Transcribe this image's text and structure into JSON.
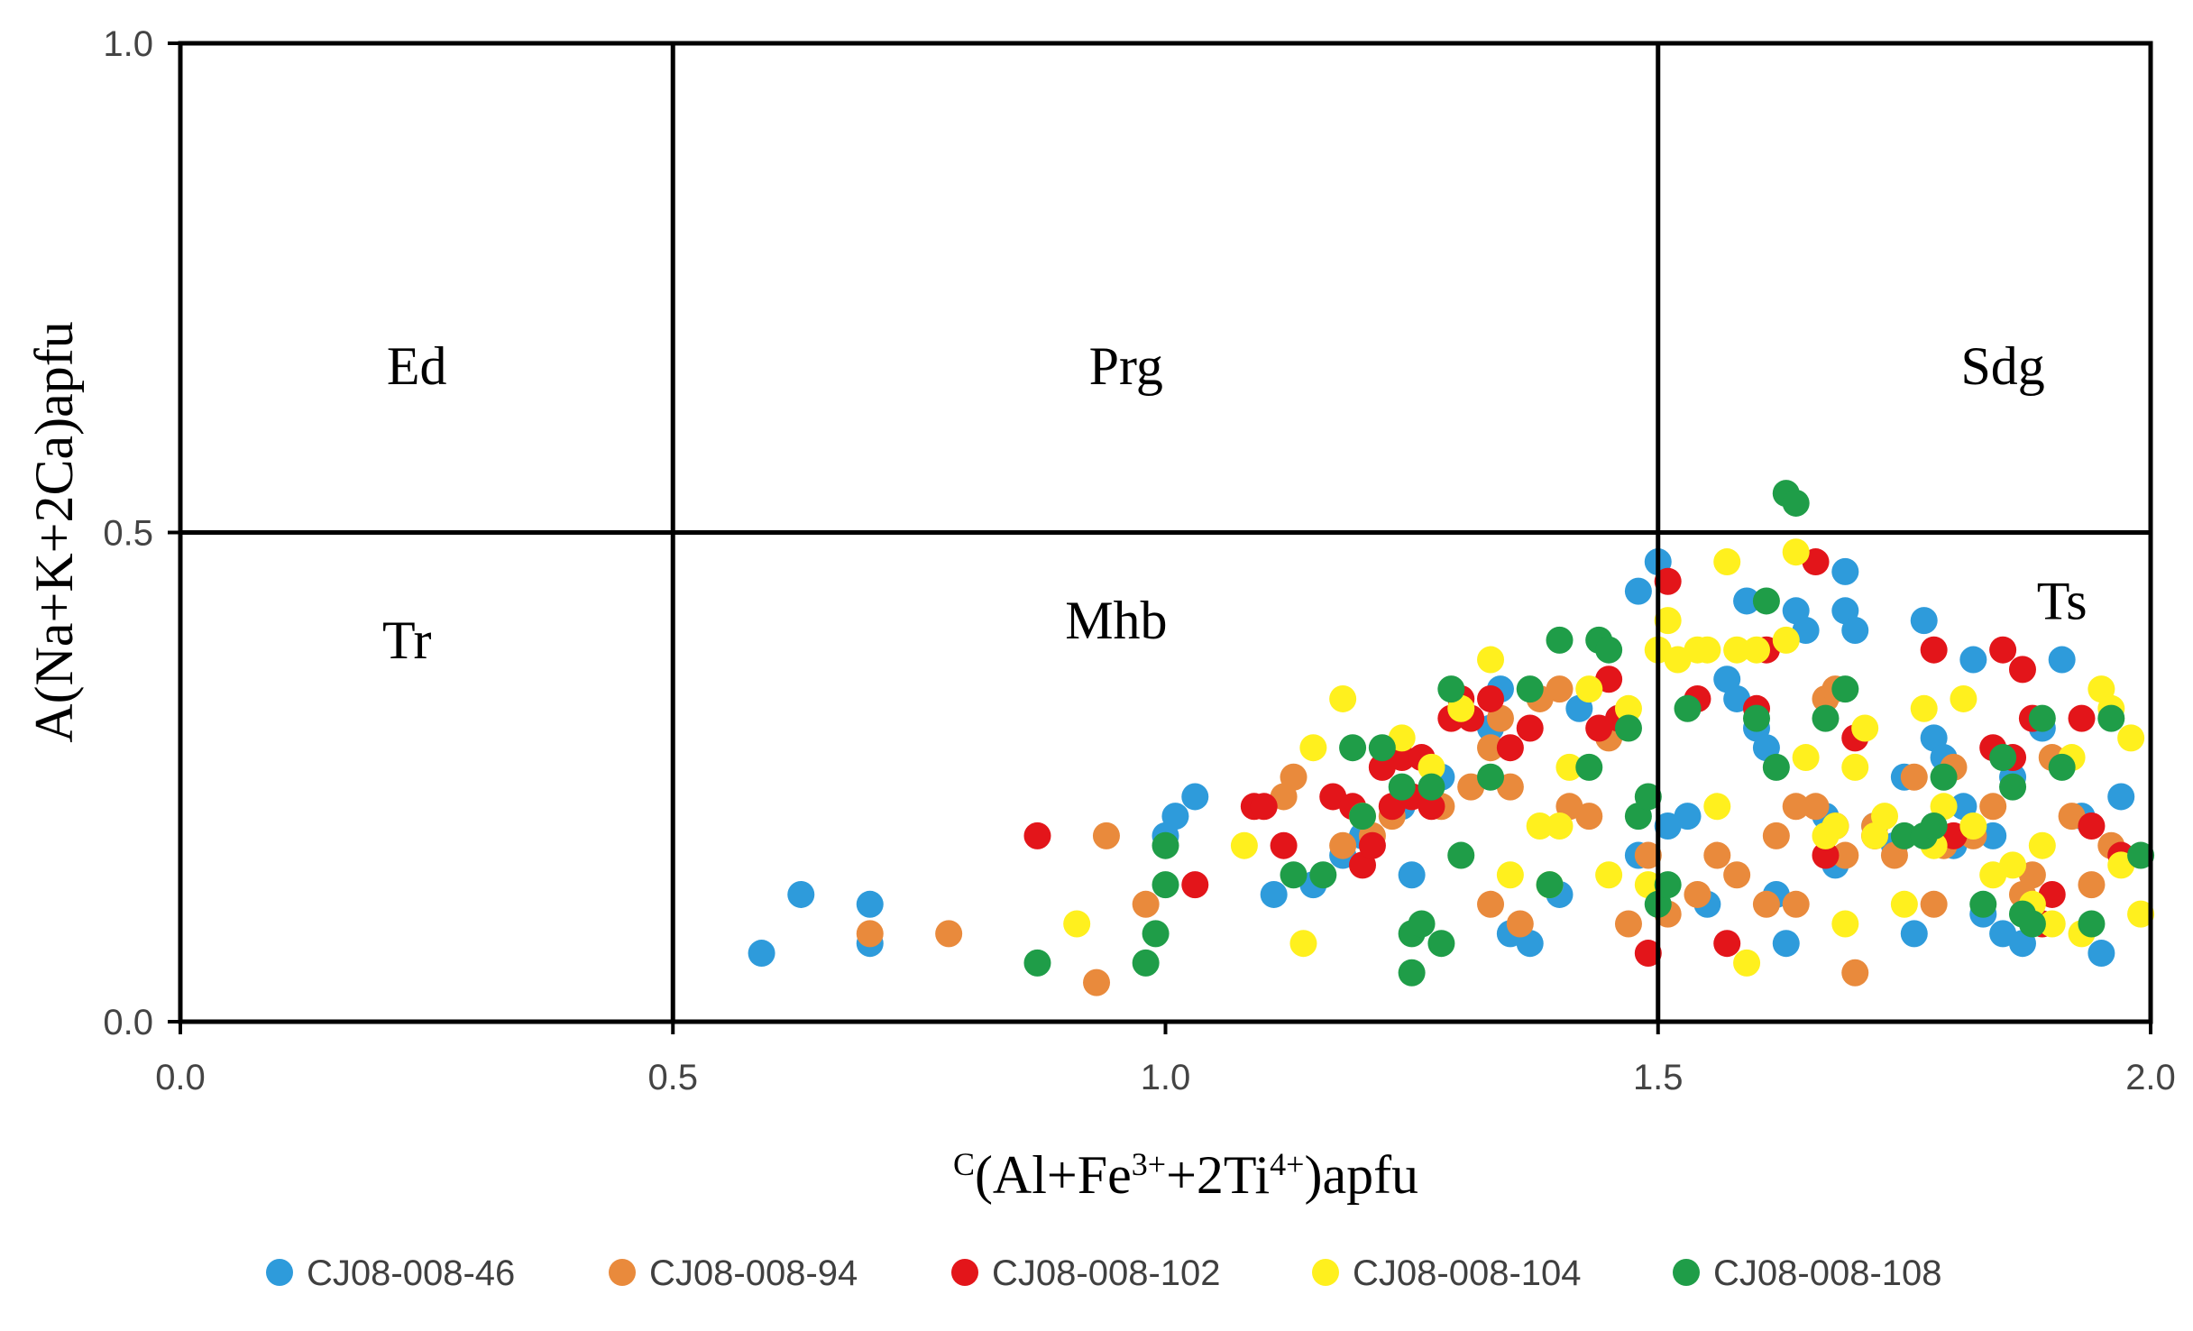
{
  "chart_data": {
    "type": "scatter",
    "title": "",
    "xlabel_sup": "C",
    "xlabel_parts": [
      "(Al+Fe",
      "3+",
      "+2Ti",
      "4+",
      ")apfu"
    ],
    "ylabel": "A(Na+K+2Ca)apfu",
    "xlim": [
      0.0,
      2.0
    ],
    "ylim": [
      0.0,
      1.0
    ],
    "x_ticks": [
      "0.0",
      "0.5",
      "1.0",
      "1.5",
      "2.0"
    ],
    "y_ticks": [
      "0.0",
      "0.5",
      "1.0"
    ],
    "field_lines": {
      "x": [
        0.5,
        1.5
      ],
      "y": [
        0.5
      ]
    },
    "field_labels": [
      {
        "text": "Ed",
        "x": 0.24,
        "y": 0.67
      },
      {
        "text": "Prg",
        "x": 0.96,
        "y": 0.67
      },
      {
        "text": "Sdg",
        "x": 1.85,
        "y": 0.67
      },
      {
        "text": "Tr",
        "x": 0.23,
        "y": 0.39
      },
      {
        "text": "Mhb",
        "x": 0.95,
        "y": 0.41
      },
      {
        "text": "Ts",
        "x": 1.91,
        "y": 0.43
      }
    ],
    "legend_position": "bottom",
    "series": [
      {
        "name": "CJ08-008-46",
        "color": "#2E9BDB",
        "points": [
          [
            0.59,
            0.07
          ],
          [
            0.63,
            0.13
          ],
          [
            0.7,
            0.12
          ],
          [
            0.7,
            0.08
          ],
          [
            1.0,
            0.19
          ],
          [
            1.01,
            0.21
          ],
          [
            1.03,
            0.23
          ],
          [
            1.11,
            0.13
          ],
          [
            1.15,
            0.14
          ],
          [
            1.18,
            0.17
          ],
          [
            1.2,
            0.19
          ],
          [
            1.24,
            0.22
          ],
          [
            1.25,
            0.15
          ],
          [
            1.28,
            0.25
          ],
          [
            1.3,
            0.32
          ],
          [
            1.33,
            0.3
          ],
          [
            1.34,
            0.34
          ],
          [
            1.35,
            0.09
          ],
          [
            1.37,
            0.08
          ],
          [
            1.4,
            0.13
          ],
          [
            1.42,
            0.32
          ],
          [
            1.46,
            0.31
          ],
          [
            1.48,
            0.44
          ],
          [
            1.48,
            0.17
          ],
          [
            1.5,
            0.47
          ],
          [
            1.51,
            0.2
          ],
          [
            1.53,
            0.21
          ],
          [
            1.55,
            0.12
          ],
          [
            1.57,
            0.35
          ],
          [
            1.58,
            0.33
          ],
          [
            1.59,
            0.43
          ],
          [
            1.6,
            0.3
          ],
          [
            1.61,
            0.28
          ],
          [
            1.62,
            0.13
          ],
          [
            1.63,
            0.08
          ],
          [
            1.64,
            0.42
          ],
          [
            1.65,
            0.4
          ],
          [
            1.67,
            0.21
          ],
          [
            1.68,
            0.16
          ],
          [
            1.69,
            0.46
          ],
          [
            1.69,
            0.42
          ],
          [
            1.7,
            0.4
          ],
          [
            1.72,
            0.2
          ],
          [
            1.74,
            0.18
          ],
          [
            1.75,
            0.25
          ],
          [
            1.76,
            0.09
          ],
          [
            1.77,
            0.41
          ],
          [
            1.78,
            0.29
          ],
          [
            1.79,
            0.27
          ],
          [
            1.8,
            0.18
          ],
          [
            1.81,
            0.22
          ],
          [
            1.82,
            0.37
          ],
          [
            1.83,
            0.11
          ],
          [
            1.84,
            0.19
          ],
          [
            1.85,
            0.09
          ],
          [
            1.86,
            0.25
          ],
          [
            1.87,
            0.08
          ],
          [
            1.89,
            0.3
          ],
          [
            1.91,
            0.37
          ],
          [
            1.93,
            0.21
          ],
          [
            1.95,
            0.07
          ],
          [
            1.97,
            0.23
          ]
        ]
      },
      {
        "name": "CJ08-008-94",
        "color": "#E98A3C",
        "points": [
          [
            0.7,
            0.09
          ],
          [
            0.78,
            0.09
          ],
          [
            0.93,
            0.04
          ],
          [
            0.94,
            0.19
          ],
          [
            0.98,
            0.12
          ],
          [
            1.12,
            0.23
          ],
          [
            1.13,
            0.25
          ],
          [
            1.18,
            0.18
          ],
          [
            1.21,
            0.19
          ],
          [
            1.23,
            0.21
          ],
          [
            1.28,
            0.22
          ],
          [
            1.31,
            0.24
          ],
          [
            1.33,
            0.28
          ],
          [
            1.33,
            0.12
          ],
          [
            1.34,
            0.31
          ],
          [
            1.35,
            0.24
          ],
          [
            1.36,
            0.1
          ],
          [
            1.38,
            0.33
          ],
          [
            1.4,
            0.34
          ],
          [
            1.41,
            0.22
          ],
          [
            1.43,
            0.21
          ],
          [
            1.45,
            0.29
          ],
          [
            1.47,
            0.1
          ],
          [
            1.49,
            0.17
          ],
          [
            1.51,
            0.11
          ],
          [
            1.54,
            0.13
          ],
          [
            1.56,
            0.17
          ],
          [
            1.58,
            0.15
          ],
          [
            1.61,
            0.12
          ],
          [
            1.62,
            0.19
          ],
          [
            1.64,
            0.12
          ],
          [
            1.64,
            0.22
          ],
          [
            1.66,
            0.22
          ],
          [
            1.67,
            0.33
          ],
          [
            1.68,
            0.34
          ],
          [
            1.69,
            0.17
          ],
          [
            1.7,
            0.05
          ],
          [
            1.72,
            0.2
          ],
          [
            1.74,
            0.17
          ],
          [
            1.76,
            0.25
          ],
          [
            1.78,
            0.12
          ],
          [
            1.79,
            0.18
          ],
          [
            1.8,
            0.26
          ],
          [
            1.82,
            0.19
          ],
          [
            1.84,
            0.22
          ],
          [
            1.87,
            0.13
          ],
          [
            1.88,
            0.15
          ],
          [
            1.9,
            0.27
          ],
          [
            1.92,
            0.21
          ],
          [
            1.94,
            0.14
          ],
          [
            1.96,
            0.18
          ]
        ]
      },
      {
        "name": "CJ08-008-102",
        "color": "#E3151A",
        "points": [
          [
            0.87,
            0.19
          ],
          [
            1.03,
            0.14
          ],
          [
            1.09,
            0.22
          ],
          [
            1.1,
            0.22
          ],
          [
            1.12,
            0.18
          ],
          [
            1.17,
            0.23
          ],
          [
            1.19,
            0.22
          ],
          [
            1.2,
            0.16
          ],
          [
            1.21,
            0.18
          ],
          [
            1.22,
            0.26
          ],
          [
            1.23,
            0.22
          ],
          [
            1.24,
            0.27
          ],
          [
            1.25,
            0.23
          ],
          [
            1.26,
            0.27
          ],
          [
            1.27,
            0.22
          ],
          [
            1.29,
            0.31
          ],
          [
            1.3,
            0.33
          ],
          [
            1.31,
            0.31
          ],
          [
            1.33,
            0.33
          ],
          [
            1.35,
            0.28
          ],
          [
            1.37,
            0.3
          ],
          [
            1.44,
            0.3
          ],
          [
            1.45,
            0.35
          ],
          [
            1.46,
            0.31
          ],
          [
            1.49,
            0.07
          ],
          [
            1.51,
            0.45
          ],
          [
            1.54,
            0.33
          ],
          [
            1.57,
            0.08
          ],
          [
            1.6,
            0.32
          ],
          [
            1.61,
            0.38
          ],
          [
            1.66,
            0.47
          ],
          [
            1.67,
            0.17
          ],
          [
            1.68,
            0.2
          ],
          [
            1.7,
            0.29
          ],
          [
            1.72,
            0.19
          ],
          [
            1.78,
            0.38
          ],
          [
            1.8,
            0.19
          ],
          [
            1.84,
            0.28
          ],
          [
            1.85,
            0.38
          ],
          [
            1.86,
            0.27
          ],
          [
            1.87,
            0.36
          ],
          [
            1.88,
            0.31
          ],
          [
            1.89,
            0.1
          ],
          [
            1.9,
            0.13
          ],
          [
            1.93,
            0.31
          ],
          [
            1.94,
            0.2
          ],
          [
            1.97,
            0.17
          ]
        ]
      },
      {
        "name": "CJ08-008-104",
        "color": "#FFF01E",
        "points": [
          [
            0.91,
            0.1
          ],
          [
            1.08,
            0.18
          ],
          [
            1.14,
            0.08
          ],
          [
            1.15,
            0.28
          ],
          [
            1.18,
            0.33
          ],
          [
            1.2,
            0.21
          ],
          [
            1.24,
            0.29
          ],
          [
            1.27,
            0.26
          ],
          [
            1.3,
            0.32
          ],
          [
            1.33,
            0.37
          ],
          [
            1.35,
            0.15
          ],
          [
            1.38,
            0.2
          ],
          [
            1.39,
            0.14
          ],
          [
            1.4,
            0.2
          ],
          [
            1.41,
            0.26
          ],
          [
            1.43,
            0.34
          ],
          [
            1.45,
            0.15
          ],
          [
            1.47,
            0.32
          ],
          [
            1.49,
            0.14
          ],
          [
            1.5,
            0.38
          ],
          [
            1.51,
            0.41
          ],
          [
            1.52,
            0.37
          ],
          [
            1.54,
            0.38
          ],
          [
            1.55,
            0.38
          ],
          [
            1.56,
            0.22
          ],
          [
            1.57,
            0.47
          ],
          [
            1.58,
            0.38
          ],
          [
            1.59,
            0.06
          ],
          [
            1.6,
            0.38
          ],
          [
            1.63,
            0.39
          ],
          [
            1.64,
            0.48
          ],
          [
            1.65,
            0.27
          ],
          [
            1.67,
            0.19
          ],
          [
            1.68,
            0.2
          ],
          [
            1.69,
            0.1
          ],
          [
            1.7,
            0.26
          ],
          [
            1.71,
            0.3
          ],
          [
            1.72,
            0.19
          ],
          [
            1.73,
            0.21
          ],
          [
            1.75,
            0.12
          ],
          [
            1.77,
            0.32
          ],
          [
            1.78,
            0.18
          ],
          [
            1.79,
            0.22
          ],
          [
            1.81,
            0.33
          ],
          [
            1.82,
            0.2
          ],
          [
            1.84,
            0.15
          ],
          [
            1.86,
            0.16
          ],
          [
            1.88,
            0.12
          ],
          [
            1.89,
            0.18
          ],
          [
            1.9,
            0.1
          ],
          [
            1.92,
            0.27
          ],
          [
            1.93,
            0.09
          ],
          [
            1.95,
            0.34
          ],
          [
            1.96,
            0.32
          ],
          [
            1.97,
            0.16
          ],
          [
            1.98,
            0.29
          ],
          [
            1.99,
            0.11
          ]
        ]
      },
      {
        "name": "CJ08-008-108",
        "color": "#1F9D48",
        "points": [
          [
            0.87,
            0.06
          ],
          [
            0.98,
            0.06
          ],
          [
            0.99,
            0.09
          ],
          [
            1.0,
            0.14
          ],
          [
            1.0,
            0.18
          ],
          [
            1.13,
            0.15
          ],
          [
            1.16,
            0.15
          ],
          [
            1.19,
            0.28
          ],
          [
            1.2,
            0.21
          ],
          [
            1.22,
            0.28
          ],
          [
            1.24,
            0.24
          ],
          [
            1.25,
            0.05
          ],
          [
            1.25,
            0.09
          ],
          [
            1.26,
            0.1
          ],
          [
            1.27,
            0.24
          ],
          [
            1.28,
            0.08
          ],
          [
            1.29,
            0.34
          ],
          [
            1.3,
            0.17
          ],
          [
            1.33,
            0.25
          ],
          [
            1.37,
            0.34
          ],
          [
            1.39,
            0.14
          ],
          [
            1.4,
            0.39
          ],
          [
            1.43,
            0.26
          ],
          [
            1.44,
            0.39
          ],
          [
            1.45,
            0.38
          ],
          [
            1.47,
            0.3
          ],
          [
            1.48,
            0.21
          ],
          [
            1.49,
            0.23
          ],
          [
            1.5,
            0.12
          ],
          [
            1.51,
            0.14
          ],
          [
            1.53,
            0.32
          ],
          [
            1.6,
            0.31
          ],
          [
            1.61,
            0.43
          ],
          [
            1.62,
            0.26
          ],
          [
            1.63,
            0.54
          ],
          [
            1.64,
            0.53
          ],
          [
            1.67,
            0.31
          ],
          [
            1.69,
            0.34
          ],
          [
            1.75,
            0.19
          ],
          [
            1.77,
            0.19
          ],
          [
            1.78,
            0.2
          ],
          [
            1.79,
            0.25
          ],
          [
            1.83,
            0.12
          ],
          [
            1.85,
            0.27
          ],
          [
            1.86,
            0.24
          ],
          [
            1.87,
            0.11
          ],
          [
            1.88,
            0.1
          ],
          [
            1.89,
            0.31
          ],
          [
            1.91,
            0.26
          ],
          [
            1.94,
            0.1
          ],
          [
            1.96,
            0.31
          ],
          [
            1.99,
            0.17
          ]
        ]
      }
    ]
  }
}
